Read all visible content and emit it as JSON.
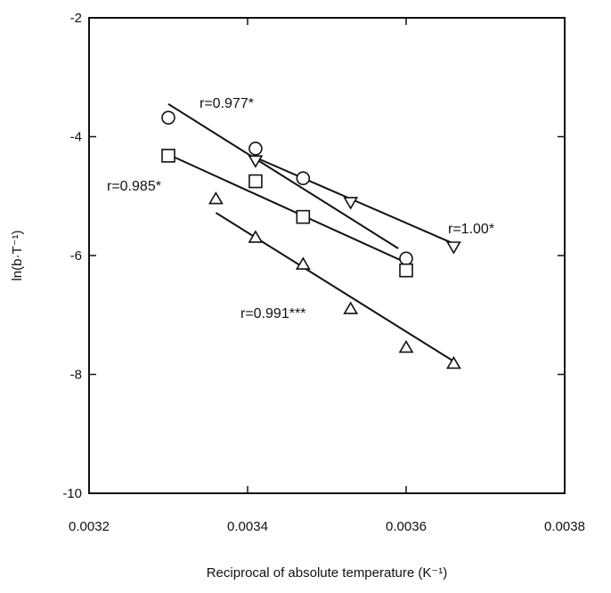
{
  "chart_data": {
    "type": "scatter",
    "title": "",
    "xlabel": "Reciprocal of absolute temperature (K⁻¹)",
    "ylabel": "ln(b·T⁻¹)",
    "xlim": [
      0.0032,
      0.0038
    ],
    "ylim": [
      -10,
      -2
    ],
    "x_ticks": [
      "0.0032",
      "0.0034",
      "0.0036",
      "0.0038"
    ],
    "y_ticks": [
      "-10",
      "-8",
      "-6",
      "-4",
      "-2"
    ],
    "grid": false,
    "series": [
      {
        "marker": "circle",
        "points": [
          [
            0.0033,
            -3.68
          ],
          [
            0.00341,
            -4.2
          ],
          [
            0.00347,
            -4.7
          ],
          [
            0.0036,
            -6.05
          ]
        ],
        "fit": [
          [
            0.0033,
            -3.45
          ],
          [
            0.00359,
            -5.88
          ]
        ],
        "annotation": "r=0.977*"
      },
      {
        "marker": "square",
        "points": [
          [
            0.0033,
            -4.32
          ],
          [
            0.00341,
            -4.75
          ],
          [
            0.00347,
            -5.35
          ],
          [
            0.0036,
            -6.25
          ]
        ],
        "fit": [
          [
            0.0033,
            -4.3
          ],
          [
            0.0036,
            -6.12
          ]
        ],
        "annotation": "r=0.985*"
      },
      {
        "marker": "triangle-down",
        "points": [
          [
            0.00341,
            -4.4
          ],
          [
            0.00353,
            -5.1
          ],
          [
            0.00366,
            -5.85
          ]
        ],
        "fit": [
          [
            0.00341,
            -4.35
          ],
          [
            0.00366,
            -5.8
          ]
        ],
        "annotation": "r=1.00*"
      },
      {
        "marker": "triangle-up",
        "points": [
          [
            0.00336,
            -5.05
          ],
          [
            0.00341,
            -5.7
          ],
          [
            0.00347,
            -6.15
          ],
          [
            0.00353,
            -6.9
          ],
          [
            0.0036,
            -7.55
          ],
          [
            0.00366,
            -7.82
          ]
        ],
        "fit": [
          [
            0.00336,
            -5.28
          ],
          [
            0.00366,
            -7.78
          ]
        ],
        "annotation": "r=0.991***"
      }
    ]
  }
}
